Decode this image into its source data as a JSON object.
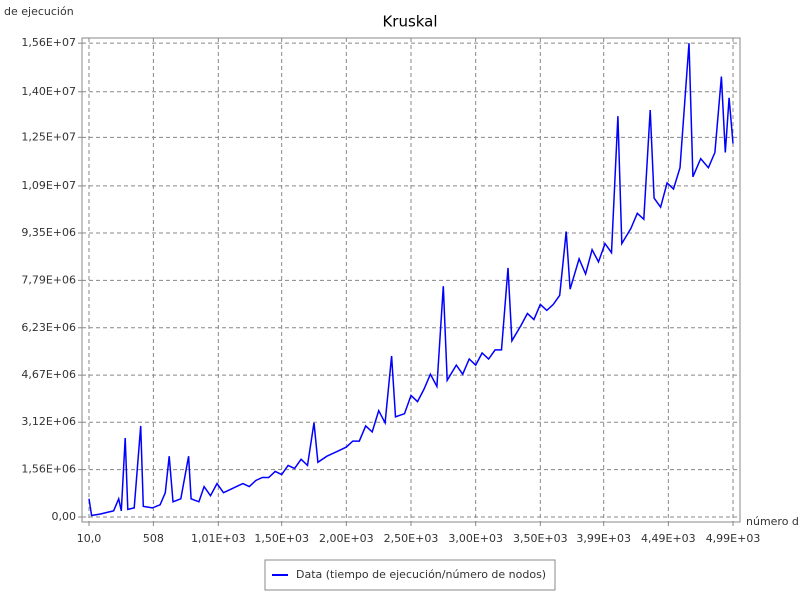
{
  "chart_data": {
    "type": "line",
    "title": "Kruskal",
    "y_label": "de ejecución",
    "x_label": "número d",
    "x": [
      10,
      30,
      100,
      150,
      200,
      240,
      260,
      290,
      310,
      360,
      410,
      430,
      500,
      560,
      600,
      630,
      660,
      720,
      780,
      800,
      860,
      900,
      950,
      1000,
      1050,
      1100,
      1150,
      1200,
      1250,
      1300,
      1350,
      1400,
      1450,
      1500,
      1550,
      1600,
      1650,
      1700,
      1750,
      1780,
      1850,
      1900,
      1950,
      2000,
      2050,
      2100,
      2150,
      2200,
      2250,
      2300,
      2350,
      2380,
      2450,
      2500,
      2550,
      2600,
      2650,
      2700,
      2750,
      2780,
      2850,
      2900,
      2950,
      3000,
      3050,
      3100,
      3150,
      3200,
      3250,
      3280,
      3350,
      3400,
      3450,
      3500,
      3550,
      3600,
      3650,
      3700,
      3730,
      3800,
      3850,
      3900,
      3950,
      4000,
      4050,
      4100,
      4130,
      4200,
      4250,
      4300,
      4350,
      4380,
      4430,
      4480,
      4530,
      4580,
      4650,
      4680,
      4740,
      4800,
      4850,
      4900,
      4930,
      4960,
      4990
    ],
    "series": [
      {
        "name": "Data (tiempo de ejecución/número de nodos)",
        "color": "#0000ff",
        "values": [
          600000,
          50000,
          100000,
          150000,
          200000,
          600000,
          200000,
          2600000,
          250000,
          300000,
          3000000,
          350000,
          300000,
          400000,
          800000,
          2000000,
          500000,
          600000,
          2000000,
          600000,
          500000,
          1000000,
          700000,
          1100000,
          800000,
          900000,
          1000000,
          1100000,
          1000000,
          1200000,
          1300000,
          1300000,
          1500000,
          1400000,
          1700000,
          1600000,
          1900000,
          1700000,
          3100000,
          1800000,
          2000000,
          2100000,
          2200000,
          2300000,
          2500000,
          2500000,
          3000000,
          2800000,
          3500000,
          3100000,
          5300000,
          3300000,
          3400000,
          4000000,
          3800000,
          4200000,
          4700000,
          4300000,
          7600000,
          4500000,
          5000000,
          4700000,
          5200000,
          5000000,
          5400000,
          5200000,
          5500000,
          5500000,
          8200000,
          5800000,
          6300000,
          6700000,
          6500000,
          7000000,
          6800000,
          7000000,
          7300000,
          9400000,
          7500000,
          8500000,
          8000000,
          8800000,
          8400000,
          9000000,
          8700000,
          13200000,
          9000000,
          9500000,
          10000000,
          9800000,
          13400000,
          10500000,
          10200000,
          11000000,
          10800000,
          11500000,
          15600000,
          11200000,
          11800000,
          11500000,
          12000000,
          14500000,
          12000000,
          13800000,
          12300000
        ]
      }
    ],
    "xlim": [
      -44,
      5044
    ],
    "ylim": [
      -165000,
      15770000
    ],
    "xticks": [
      {
        "value": 10,
        "label": "10,0"
      },
      508,
      {
        "value": 1010,
        "label": "1,01E+03"
      },
      {
        "value": 1500,
        "label": "1,50E+03"
      },
      {
        "value": 2000,
        "label": "2,00E+03"
      },
      {
        "value": 2500,
        "label": "2,50E+03"
      },
      {
        "value": 3000,
        "label": "3,00E+03"
      },
      {
        "value": 3500,
        "label": "3,50E+03"
      },
      {
        "value": 3990,
        "label": "3,99E+03"
      },
      {
        "value": 4490,
        "label": "4,49E+03"
      },
      {
        "value": 4990,
        "label": "4,99E+03"
      }
    ],
    "yticks": [
      {
        "value": 0,
        "label": "0,00"
      },
      {
        "value": 1560000,
        "label": "1,56E+06"
      },
      {
        "value": 3120000,
        "label": "3,12E+06"
      },
      {
        "value": 4670000,
        "label": "4,67E+06"
      },
      {
        "value": 6230000,
        "label": "6,23E+06"
      },
      {
        "value": 7790000,
        "label": "7,79E+06"
      },
      {
        "value": 9350000,
        "label": "9,35E+06"
      },
      {
        "value": 10900000,
        "label": "1,09E+07"
      },
      {
        "value": 12500000,
        "label": "1,25E+07"
      },
      {
        "value": 14000000,
        "label": "1,40E+07"
      },
      {
        "value": 15600000,
        "label": "1,56E+07"
      }
    ],
    "grid": true,
    "legend": "bottom"
  }
}
